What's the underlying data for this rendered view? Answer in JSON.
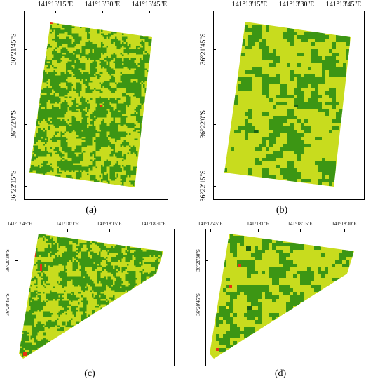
{
  "panels": [
    {
      "id": "a",
      "caption": "(a)",
      "lon_labels": [
        "141°13'15''E",
        "141°13'30''E",
        "141°13'45''E"
      ],
      "lat_labels": [
        "36°21'45''S",
        "36°22'0''S",
        "36°22'15''S"
      ]
    },
    {
      "id": "b",
      "caption": "(b)",
      "lon_labels": [
        "141°13'15''E",
        "141°13'30''E",
        "141°13'45''E"
      ],
      "lat_labels": [
        "36°21'45''S",
        "36°22'0''S",
        "36°22'15''S"
      ]
    },
    {
      "id": "c",
      "caption": "(c)",
      "lon_labels": [
        "141°17'45''E",
        "141°18'0''E",
        "141°18'15''E",
        "141°18'30''E"
      ],
      "lat_labels": [
        "36°20'30''S",
        "36°20'45''S"
      ]
    },
    {
      "id": "d",
      "caption": "(d)",
      "lon_labels": [
        "141°17'45''E",
        "141°18'0''E",
        "141°18'15''E",
        "141°18'30''E"
      ],
      "lat_labels": [
        "36°20'30''S",
        "36°20'45''S"
      ]
    }
  ],
  "colors": {
    "light_class": "#c8dc1e",
    "medium_class": "#3c9614",
    "dark_class": "#1e6414",
    "red_class": "#e63214",
    "yellow_class": "#f0e61e"
  }
}
